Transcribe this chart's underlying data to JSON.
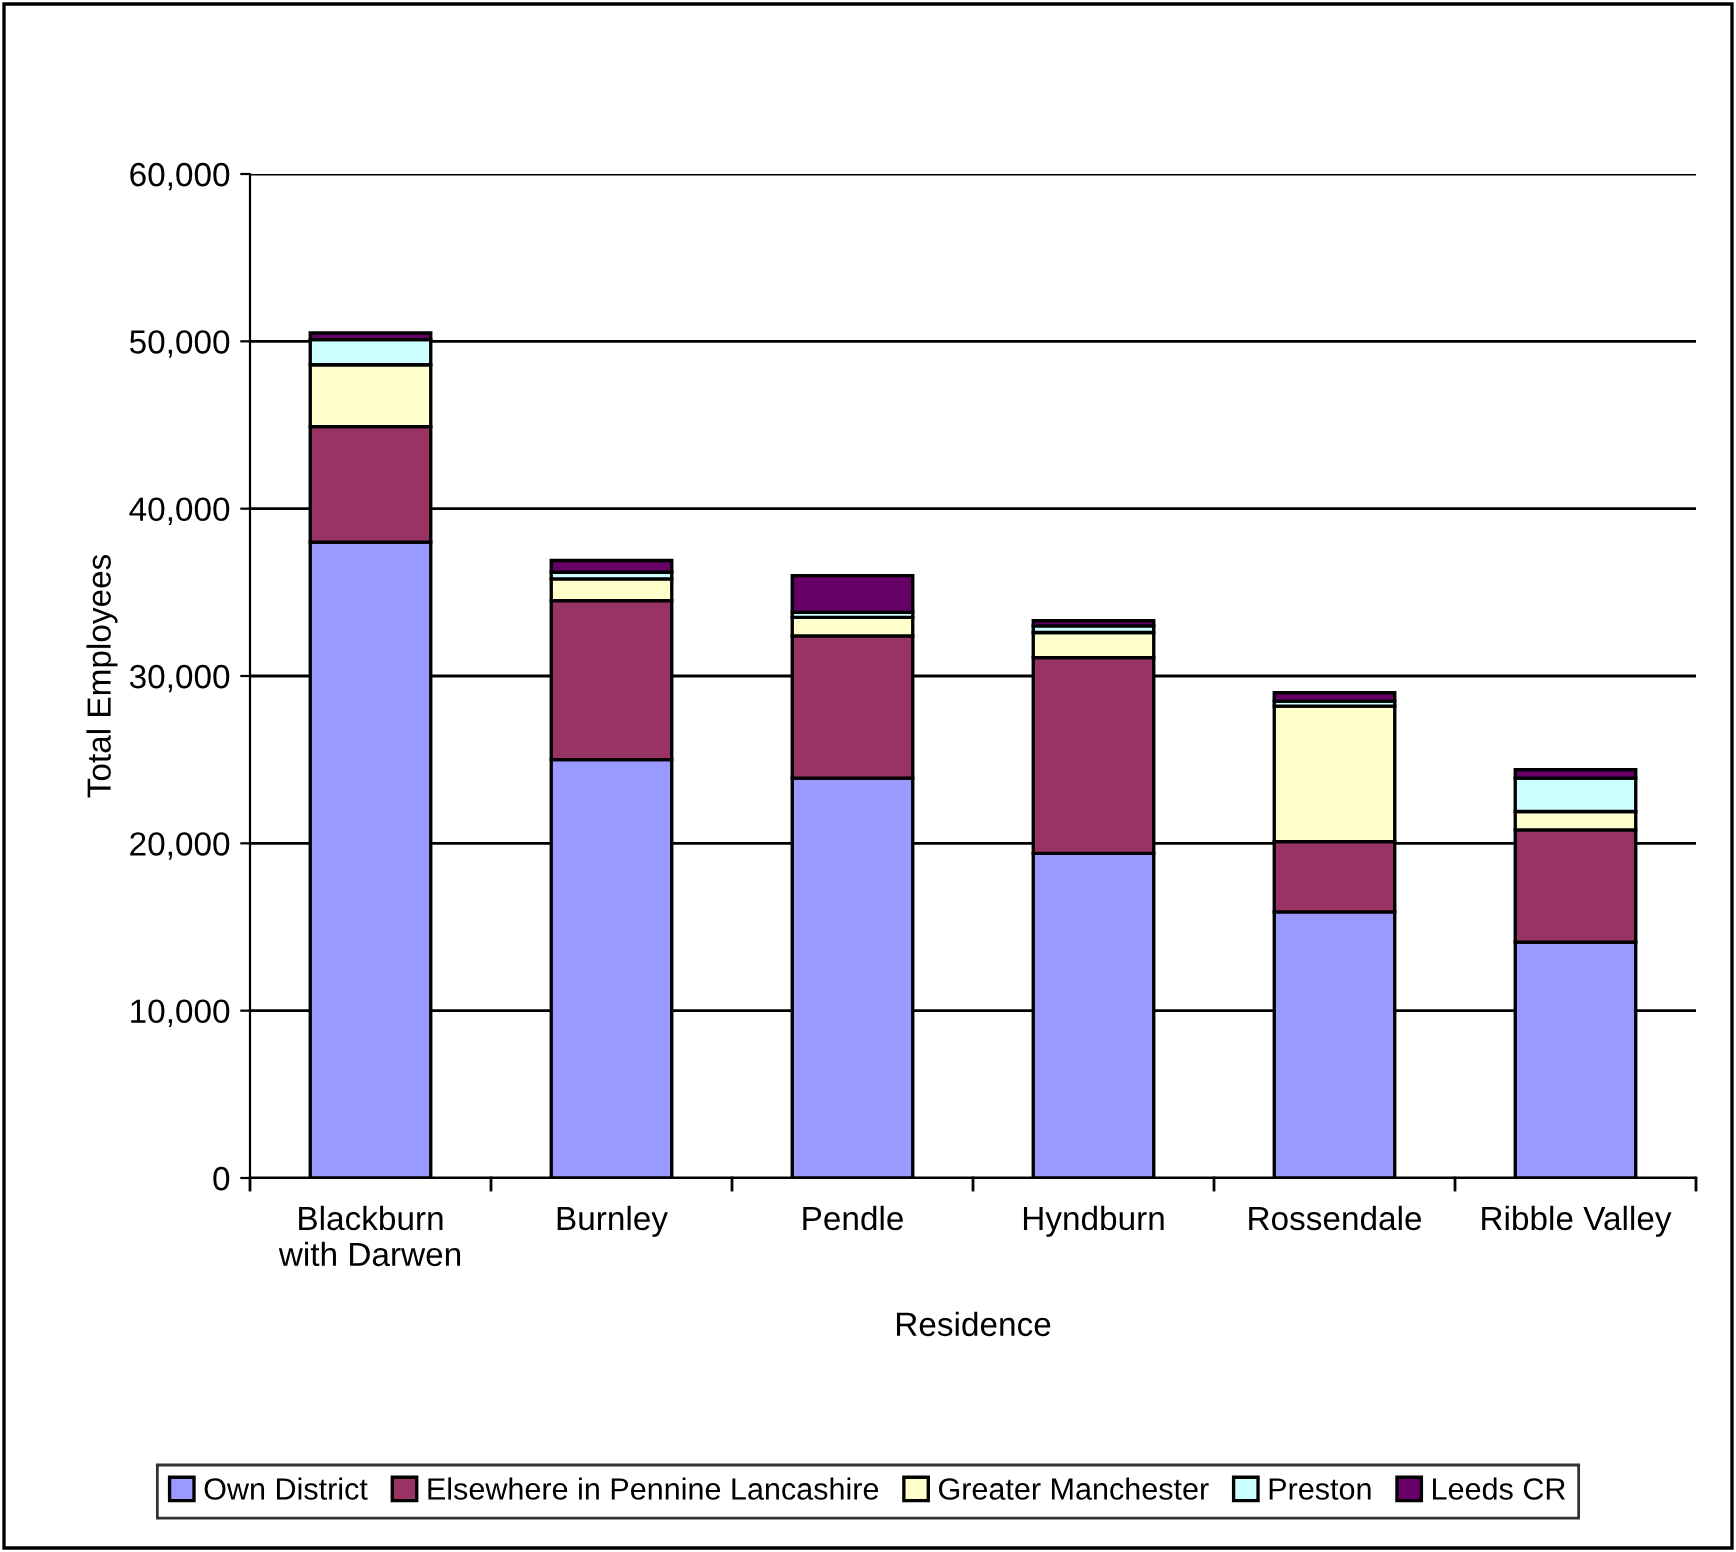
{
  "chart_data": {
    "type": "bar",
    "stacked": true,
    "xlabel": "Residence",
    "ylabel": "Total Employees",
    "categories": [
      "Blackburn\nwith Darwen",
      "Burnley",
      "Pendle",
      "Hyndburn",
      "Rossendale",
      "Ribble Valley"
    ],
    "series": [
      {
        "name": "Own District",
        "color": "#9999ff",
        "values": [
          38000,
          25000,
          23900,
          19400,
          15900,
          14100
        ]
      },
      {
        "name": "Elsewhere in Pennine Lancashire",
        "color": "#993366",
        "values": [
          6900,
          9500,
          8500,
          11700,
          4200,
          6700
        ]
      },
      {
        "name": "Greater Manchester",
        "color": "#ffffcc",
        "values": [
          3700,
          1300,
          1100,
          1500,
          8100,
          1100
        ]
      },
      {
        "name": "Preston",
        "color": "#ccffff",
        "values": [
          1500,
          400,
          300,
          400,
          300,
          2000
        ]
      },
      {
        "name": "Leeds CR",
        "color": "#660066",
        "values": [
          400,
          700,
          2200,
          300,
          500,
          500
        ]
      }
    ],
    "ylim": [
      0,
      60000
    ],
    "yticks": [
      {
        "value": 0,
        "label": "0"
      },
      {
        "value": 10000,
        "label": "10,000"
      },
      {
        "value": 20000,
        "label": "20,000"
      },
      {
        "value": 30000,
        "label": "30,000"
      },
      {
        "value": 40000,
        "label": "40,000"
      },
      {
        "value": 50000,
        "label": "50,000"
      },
      {
        "value": 60000,
        "label": "60,000"
      }
    ],
    "grid": "y",
    "legend": "bottom"
  }
}
